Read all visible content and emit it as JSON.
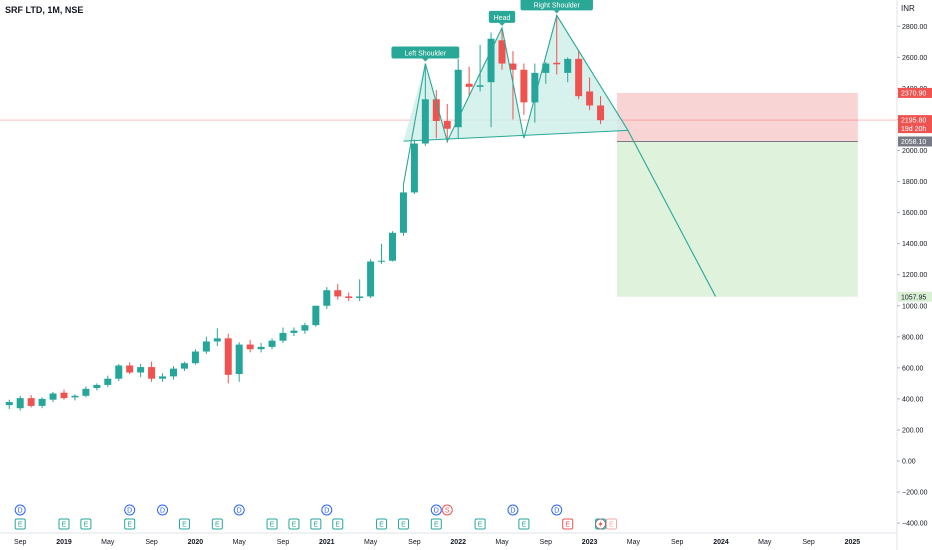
{
  "header": {
    "symbol": "SRF LTD, 1M, NSE",
    "currency": "INR"
  },
  "colors": {
    "up": "#26a69a",
    "down": "#ef5350",
    "stop_fill": "#f7c6c6",
    "target_fill": "#d9f0d5",
    "hs_fill": "#cdeee9",
    "hs_line": "#2aa897",
    "last_price_bg": "#ef5350",
    "entry_bg": "#787b86",
    "marker_dividend": "#2962ff",
    "marker_earnings": "#26a69a",
    "marker_split": "#ef5350"
  },
  "pattern_labels": {
    "left_shoulder": "Left Shoulder",
    "head": "Head",
    "right_shoulder": "Right Shoulder"
  },
  "chart_data": {
    "type": "candlestick",
    "title": "SRF LTD, 1M, NSE",
    "ylabel": "INR",
    "ylim": [
      -450,
      2950
    ],
    "yticks": [
      -400,
      -200,
      0,
      200,
      400,
      600,
      800,
      1000,
      1200,
      1400,
      1600,
      1800,
      2000,
      2200,
      2400,
      2600,
      2800
    ],
    "ytick_labels": [
      "−400.00",
      "−200.00",
      "0.00",
      "200.00",
      "400.00",
      "600.00",
      "800.00",
      "1000.00",
      "1200.00",
      "1400.00",
      "1600.00",
      "1800.00",
      "2000.00",
      "2200.00",
      "2400.00",
      "2600.00",
      "2800.00"
    ],
    "xticks": [
      {
        "label": "Sep",
        "month": -4
      },
      {
        "label": "2019",
        "month": 0
      },
      {
        "label": "May",
        "month": 4
      },
      {
        "label": "Sep",
        "month": 8
      },
      {
        "label": "2020",
        "month": 12
      },
      {
        "label": "May",
        "month": 16
      },
      {
        "label": "Sep",
        "month": 20
      },
      {
        "label": "2021",
        "month": 24
      },
      {
        "label": "May",
        "month": 28
      },
      {
        "label": "Sep",
        "month": 32
      },
      {
        "label": "2022",
        "month": 36
      },
      {
        "label": "May",
        "month": 40
      },
      {
        "label": "Sep",
        "month": 44
      },
      {
        "label": "2023",
        "month": 48
      },
      {
        "label": "May",
        "month": 52
      },
      {
        "label": "Sep",
        "month": 56
      },
      {
        "label": "2024",
        "month": 60
      },
      {
        "label": "May",
        "month": 64
      },
      {
        "label": "Sep",
        "month": 68
      },
      {
        "label": "2025",
        "month": 72
      }
    ],
    "candles": [
      {
        "m": -5,
        "o": 360,
        "h": 395,
        "l": 335,
        "c": 380
      },
      {
        "m": -4,
        "o": 340,
        "h": 420,
        "l": 325,
        "c": 405
      },
      {
        "m": -3,
        "o": 405,
        "h": 425,
        "l": 345,
        "c": 355
      },
      {
        "m": -2,
        "o": 355,
        "h": 410,
        "l": 340,
        "c": 400
      },
      {
        "m": -1,
        "o": 395,
        "h": 445,
        "l": 380,
        "c": 435
      },
      {
        "m": 0,
        "o": 440,
        "h": 460,
        "l": 395,
        "c": 405
      },
      {
        "m": 1,
        "o": 410,
        "h": 430,
        "l": 390,
        "c": 420
      },
      {
        "m": 2,
        "o": 420,
        "h": 480,
        "l": 410,
        "c": 465
      },
      {
        "m": 3,
        "o": 470,
        "h": 500,
        "l": 455,
        "c": 490
      },
      {
        "m": 4,
        "o": 490,
        "h": 550,
        "l": 475,
        "c": 530
      },
      {
        "m": 5,
        "o": 530,
        "h": 625,
        "l": 515,
        "c": 615
      },
      {
        "m": 6,
        "o": 615,
        "h": 635,
        "l": 560,
        "c": 570
      },
      {
        "m": 7,
        "o": 570,
        "h": 625,
        "l": 540,
        "c": 605
      },
      {
        "m": 8,
        "o": 605,
        "h": 640,
        "l": 510,
        "c": 530
      },
      {
        "m": 9,
        "o": 530,
        "h": 565,
        "l": 510,
        "c": 545
      },
      {
        "m": 10,
        "o": 545,
        "h": 610,
        "l": 525,
        "c": 595
      },
      {
        "m": 11,
        "o": 595,
        "h": 640,
        "l": 580,
        "c": 630
      },
      {
        "m": 12,
        "o": 630,
        "h": 720,
        "l": 620,
        "c": 705
      },
      {
        "m": 13,
        "o": 705,
        "h": 800,
        "l": 690,
        "c": 770
      },
      {
        "m": 14,
        "o": 770,
        "h": 855,
        "l": 740,
        "c": 790
      },
      {
        "m": 15,
        "o": 790,
        "h": 820,
        "l": 500,
        "c": 555
      },
      {
        "m": 16,
        "o": 560,
        "h": 765,
        "l": 510,
        "c": 750
      },
      {
        "m": 17,
        "o": 750,
        "h": 780,
        "l": 700,
        "c": 720
      },
      {
        "m": 18,
        "o": 720,
        "h": 760,
        "l": 700,
        "c": 735
      },
      {
        "m": 19,
        "o": 735,
        "h": 790,
        "l": 720,
        "c": 775
      },
      {
        "m": 20,
        "o": 775,
        "h": 860,
        "l": 760,
        "c": 825
      },
      {
        "m": 21,
        "o": 825,
        "h": 860,
        "l": 805,
        "c": 840
      },
      {
        "m": 22,
        "o": 840,
        "h": 890,
        "l": 820,
        "c": 875
      },
      {
        "m": 23,
        "o": 875,
        "h": 1000,
        "l": 865,
        "c": 1000
      },
      {
        "m": 24,
        "o": 1000,
        "h": 1120,
        "l": 980,
        "c": 1100
      },
      {
        "m": 25,
        "o": 1100,
        "h": 1140,
        "l": 1040,
        "c": 1060
      },
      {
        "m": 26,
        "o": 1060,
        "h": 1085,
        "l": 1030,
        "c": 1050
      },
      {
        "m": 27,
        "o": 1050,
        "h": 1170,
        "l": 1030,
        "c": 1060
      },
      {
        "m": 28,
        "o": 1060,
        "h": 1300,
        "l": 1050,
        "c": 1285
      },
      {
        "m": 29,
        "o": 1285,
        "h": 1400,
        "l": 1270,
        "c": 1290
      },
      {
        "m": 30,
        "o": 1290,
        "h": 1480,
        "l": 1285,
        "c": 1470
      },
      {
        "m": 31,
        "o": 1470,
        "h": 1780,
        "l": 1450,
        "c": 1730
      },
      {
        "m": 32,
        "o": 1730,
        "h": 2070,
        "l": 1720,
        "c": 2045
      },
      {
        "m": 33,
        "o": 2045,
        "h": 2560,
        "l": 2030,
        "c": 2330
      },
      {
        "m": 34,
        "o": 2330,
        "h": 2390,
        "l": 2080,
        "c": 2190
      },
      {
        "m": 35,
        "o": 2190,
        "h": 2300,
        "l": 2050,
        "c": 2140
      },
      {
        "m": 36,
        "o": 2150,
        "h": 2590,
        "l": 2080,
        "c": 2520
      },
      {
        "m": 37,
        "o": 2430,
        "h": 2540,
        "l": 2350,
        "c": 2410
      },
      {
        "m": 38,
        "o": 2410,
        "h": 2680,
        "l": 2380,
        "c": 2420
      },
      {
        "m": 39,
        "o": 2440,
        "h": 2760,
        "l": 2150,
        "c": 2720
      },
      {
        "m": 40,
        "o": 2710,
        "h": 2790,
        "l": 2520,
        "c": 2560
      },
      {
        "m": 41,
        "o": 2560,
        "h": 2640,
        "l": 2200,
        "c": 2520
      },
      {
        "m": 42,
        "o": 2520,
        "h": 2560,
        "l": 2230,
        "c": 2310
      },
      {
        "m": 43,
        "o": 2310,
        "h": 2560,
        "l": 2180,
        "c": 2500
      },
      {
        "m": 44,
        "o": 2500,
        "h": 2570,
        "l": 2430,
        "c": 2560
      },
      {
        "m": 45,
        "o": 2565,
        "h": 2870,
        "l": 2490,
        "c": 2555
      },
      {
        "m": 46,
        "o": 2500,
        "h": 2600,
        "l": 2440,
        "c": 2590
      },
      {
        "m": 47,
        "o": 2590,
        "h": 2650,
        "l": 2330,
        "c": 2350
      },
      {
        "m": 48,
        "o": 2380,
        "h": 2470,
        "l": 2260,
        "c": 2290
      },
      {
        "m": 49,
        "o": 2290,
        "h": 2350,
        "l": 2170,
        "c": 2195
      }
    ],
    "head_and_shoulders": [
      {
        "m": 31,
        "p": 1780
      },
      {
        "m": 33,
        "p": 2560
      },
      {
        "m": 35,
        "p": 2060
      },
      {
        "m": 40,
        "p": 2790
      },
      {
        "m": 42,
        "p": 2080
      },
      {
        "m": 45,
        "p": 2870
      },
      {
        "m": 51.5,
        "p": 2130
      },
      {
        "m": 59.5,
        "p": 1060
      }
    ],
    "neckline": {
      "from": {
        "m": 31,
        "p": 2060
      },
      "to": {
        "m": 51.5,
        "p": 2130
      }
    },
    "position": {
      "start_month": 50.5,
      "end_month": 72.5,
      "stop": 2370.9,
      "entry": 2058.1,
      "target": 1057.95
    },
    "last_price": 2195.8,
    "price_labels": {
      "stop": "2370.90",
      "last": "2195.80",
      "countdown": "19d 20h",
      "entry": "2058.10",
      "target": "1057.95"
    },
    "event_markers": {
      "dividends": [
        -4,
        6,
        9,
        16,
        24,
        34,
        41,
        45
      ],
      "earnings": [
        -4,
        0,
        2,
        6,
        11,
        14,
        19,
        21,
        23,
        25,
        29,
        31,
        34,
        38,
        42,
        46,
        49
      ],
      "earnings_red": [
        35,
        46
      ],
      "splits": [
        35
      ],
      "upcoming": [
        49,
        50
      ]
    }
  }
}
